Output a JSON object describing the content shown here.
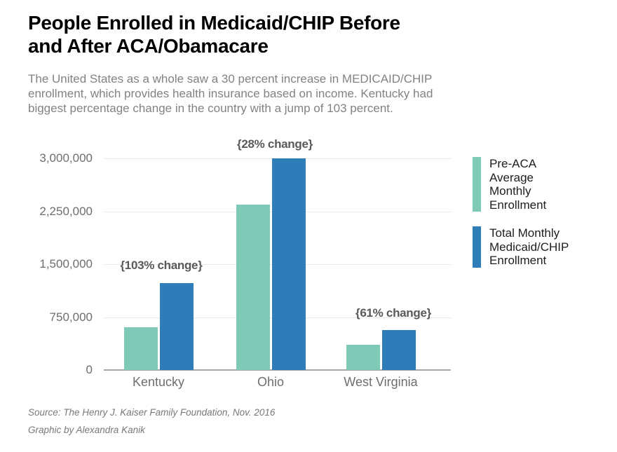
{
  "header": {
    "title": "People Enrolled in Medicaid/CHIP Before\nand After ACA/Obamacare",
    "subtitle": "The United States as a whole saw a 30 percent increase in MEDICAID/CHIP\nenrollment, which provides health insurance based on income. Kentucky had\nbiggest percentage change in the country with a jump of 103 percent."
  },
  "chart_data": {
    "type": "bar",
    "categories": [
      "Kentucky",
      "Ohio",
      "West Virginia"
    ],
    "series": [
      {
        "name": "Pre-ACA Average Monthly Enrollment",
        "color": "#7fc9b7",
        "values": [
          606000,
          2341000,
          355000
        ]
      },
      {
        "name": "Total Monthly Medicaid/CHIP Enrollment",
        "color": "#2e7db8",
        "values": [
          1231000,
          2999000,
          571000
        ]
      }
    ],
    "annotations": [
      {
        "text": "{103% change}",
        "category": "Kentucky"
      },
      {
        "text": "{28% change}",
        "category": "Ohio"
      },
      {
        "text": "{61% change}",
        "category": "West Virginia"
      }
    ],
    "ylim": [
      0,
      3000000
    ],
    "yticks": [
      {
        "value": 0,
        "label": "0"
      },
      {
        "value": 750000,
        "label": "750,000"
      },
      {
        "value": 1500000,
        "label": "1,500,000"
      },
      {
        "value": 2250000,
        "label": "2,250,000"
      },
      {
        "value": 3000000,
        "label": "3,000,000"
      }
    ],
    "grid": true,
    "legend_position": "right",
    "xlabel": "",
    "ylabel": ""
  },
  "legend": {
    "items": [
      {
        "label": "Pre-ACA\nAverage\nMonthly\nEnrollment",
        "color": "#7fc9b7"
      },
      {
        "label": "Total Monthly\nMedicaid/CHIP\nEnrollment",
        "color": "#2e7db8"
      }
    ]
  },
  "footer": {
    "source": "Source: The Henry J. Kaiser Family Foundation, Nov. 2016",
    "credit": "Graphic by Alexandra Kanik"
  },
  "colors": {
    "pre_aca_teal": "#7fc9b7",
    "total_blue": "#2e7db8",
    "title_text": "#000000",
    "subtitle_text": "#808285",
    "axis_text": "#6d6e71",
    "annotation_text": "#58595b",
    "gridline": "#e8e8e8",
    "axis_line": "#a6a6a6",
    "source_text": "#77787b",
    "background": "#ffffff"
  }
}
